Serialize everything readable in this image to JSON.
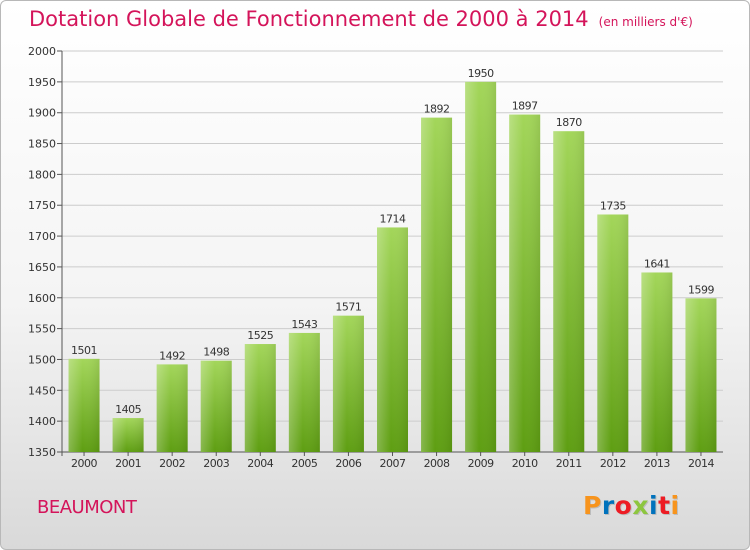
{
  "header": {
    "title": "Dotation Globale de Fonctionnement de 2000 à 2014",
    "unit": "(en milliers d'€)"
  },
  "footer": {
    "commune": "BEAUMONT",
    "logo": "Proxiti",
    "logo_colors": [
      "#f7941d",
      "#0072bc",
      "#ed1c24",
      "#8dc63f",
      "#0072bc",
      "#ed1c24",
      "#f7941d"
    ]
  },
  "colors": {
    "accent": "#d4145a",
    "bar_top": "#a3d65a",
    "bar_bottom": "#5e9e12",
    "grid": "#cccccc"
  },
  "chart_data": {
    "type": "bar",
    "title": "Dotation Globale de Fonctionnement de 2000 à 2014",
    "subtitle": "(en milliers d'€)",
    "xlabel": "",
    "ylabel": "",
    "grid": true,
    "ylim": [
      1350,
      2000
    ],
    "yticks": [
      1350,
      1400,
      1450,
      1500,
      1550,
      1600,
      1650,
      1700,
      1750,
      1800,
      1850,
      1900,
      1950,
      2000
    ],
    "categories": [
      "2000",
      "2001",
      "2002",
      "2003",
      "2004",
      "2005",
      "2006",
      "2007",
      "2008",
      "2009",
      "2010",
      "2011",
      "2012",
      "2013",
      "2014"
    ],
    "values": [
      1501,
      1405,
      1492,
      1498,
      1525,
      1543,
      1571,
      1714,
      1892,
      1950,
      1897,
      1870,
      1735,
      1641,
      1599
    ],
    "data_labels": [
      "1501",
      "1405",
      "1492",
      "1498",
      "1525",
      "1543",
      "1571",
      "1714",
      "1892",
      "1950",
      "1897",
      "1870",
      "1735",
      "1641",
      "1599"
    ]
  }
}
